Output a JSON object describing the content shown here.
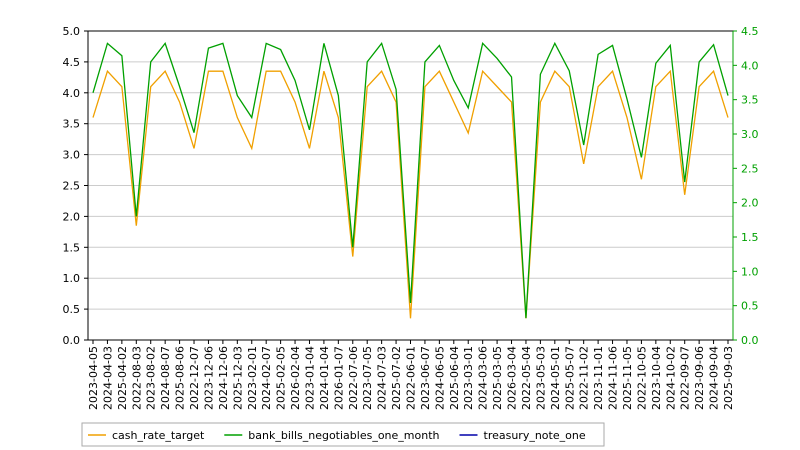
{
  "chart_data": {
    "type": "line",
    "categories": [
      "2023-04-05",
      "2024-04-03",
      "2025-04-02",
      "2022-08-03",
      "2023-08-02",
      "2024-08-07",
      "2025-08-06",
      "2022-12-07",
      "2023-12-06",
      "2024-12-06",
      "2025-12-03",
      "2023-02-01",
      "2024-02-07",
      "2025-02-05",
      "2026-02-04",
      "2023-01-04",
      "2024-01-04",
      "2026-01-07",
      "2022-07-06",
      "2023-07-05",
      "2024-07-03",
      "2025-07-02",
      "2022-06-01",
      "2023-06-07",
      "2024-06-05",
      "2025-06-04",
      "2023-03-01",
      "2024-03-06",
      "2025-03-05",
      "2026-03-04",
      "2022-05-04",
      "2023-05-03",
      "2024-05-01",
      "2025-05-07",
      "2022-11-02",
      "2023-11-01",
      "2024-11-06",
      "2025-11-05",
      "2022-10-05",
      "2023-10-04",
      "2024-10-02",
      "2022-09-07",
      "2023-09-06",
      "2024-09-04",
      "2025-09-03"
    ],
    "series": [
      {
        "name": "cash_rate_target",
        "color": "#f0a000",
        "values": [
          3.6,
          4.35,
          4.1,
          1.85,
          4.1,
          4.35,
          3.85,
          3.1,
          4.35,
          4.35,
          3.6,
          3.1,
          4.35,
          4.35,
          3.85,
          3.1,
          4.35,
          3.6,
          1.35,
          4.1,
          4.35,
          3.85,
          0.35,
          4.1,
          4.35,
          3.85,
          3.35,
          4.35,
          4.1,
          3.85,
          0.35,
          3.85,
          4.35,
          4.1,
          2.85,
          4.1,
          4.35,
          3.6,
          2.6,
          4.1,
          4.35,
          2.35,
          4.1,
          4.35,
          3.6
        ]
      },
      {
        "name": "bank_bills_negotiables_one_month",
        "color": "#00a000",
        "axis": "y2",
        "values": [
          3.6,
          4.32,
          4.14,
          1.8,
          4.05,
          4.32,
          3.69,
          3.02,
          4.25,
          4.32,
          3.56,
          3.24,
          4.32,
          4.23,
          3.78,
          3.06,
          4.32,
          3.56,
          1.35,
          4.05,
          4.32,
          3.65,
          0.54,
          4.05,
          4.29,
          3.78,
          3.38,
          4.32,
          4.1,
          3.83,
          0.32,
          3.87,
          4.32,
          3.92,
          2.84,
          4.16,
          4.29,
          3.51,
          2.66,
          4.03,
          4.29,
          2.3,
          4.05,
          4.3,
          3.56
        ]
      },
      {
        "name": "treasury_note_one",
        "color": "#0000aa",
        "values": [
          null,
          null,
          null,
          null,
          null,
          null,
          null,
          null,
          null,
          null,
          null,
          null,
          null,
          null,
          null,
          null,
          null,
          null,
          null,
          null,
          null,
          null,
          null,
          null,
          null,
          null,
          null,
          null,
          null,
          null,
          null,
          null,
          null,
          null,
          null,
          null,
          null,
          null,
          null,
          null,
          null,
          null,
          null,
          null,
          null
        ]
      }
    ],
    "ylim": [
      0,
      5
    ],
    "yticks": [
      {
        "value": 0,
        "label": "0.0"
      },
      {
        "value": 0.5,
        "label": "0.5"
      },
      {
        "value": 1,
        "label": "1.0"
      },
      {
        "value": 1.5,
        "label": "1.5"
      },
      {
        "value": 2,
        "label": "2.0"
      },
      {
        "value": 2.5,
        "label": "2.5"
      },
      {
        "value": 3,
        "label": "3.0"
      },
      {
        "value": 3.5,
        "label": "3.5"
      },
      {
        "value": 4,
        "label": "4.0"
      },
      {
        "value": 4.5,
        "label": "4.5"
      },
      {
        "value": 5,
        "label": "5.0"
      }
    ],
    "y2lim": [
      0,
      4.5
    ],
    "y2ticks": [
      {
        "value": 0,
        "label": "0.0"
      },
      {
        "value": 0.5,
        "label": "0.5"
      },
      {
        "value": 1,
        "label": "1.0"
      },
      {
        "value": 1.5,
        "label": "1.5"
      },
      {
        "value": 2,
        "label": "2.0"
      },
      {
        "value": 2.5,
        "label": "2.5"
      },
      {
        "value": 3,
        "label": "3.0"
      },
      {
        "value": 3.5,
        "label": "3.5"
      },
      {
        "value": 4,
        "label": "4.0"
      },
      {
        "value": 4.5,
        "label": "4.5"
      }
    ],
    "y2color": "#00a000",
    "grid": true,
    "legend": "bottom-left"
  }
}
